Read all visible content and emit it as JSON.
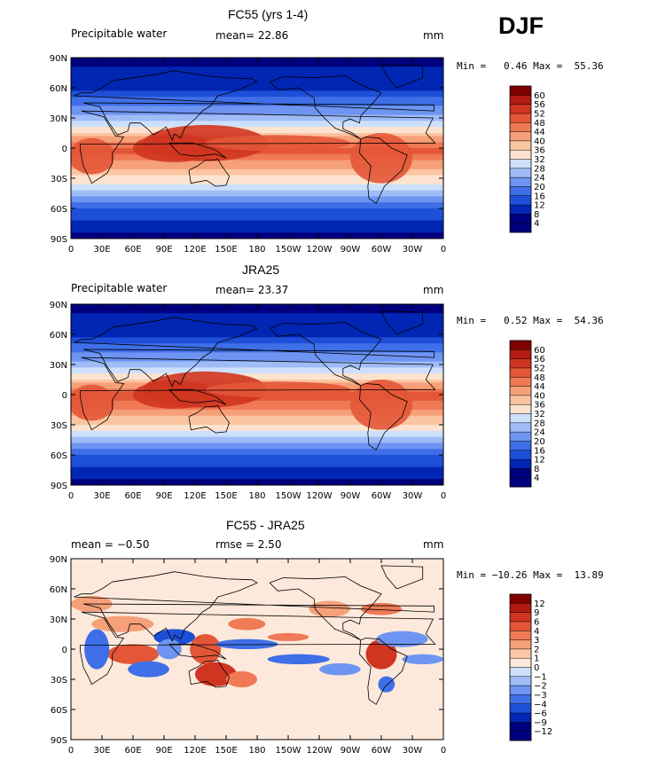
{
  "season": "DJF",
  "axes": {
    "lat_ticks": [
      "90N",
      "60N",
      "30N",
      "0",
      "30S",
      "60S",
      "90S"
    ],
    "lon_ticks": [
      "0",
      "30E",
      "60E",
      "90E",
      "120E",
      "150E",
      "180",
      "150W",
      "120W",
      "90W",
      "60W",
      "30W",
      "0"
    ]
  },
  "colors": {
    "pw_levels": [
      "#00007f",
      "#0026b3",
      "#1e4fd8",
      "#3f6fe8",
      "#6f95f2",
      "#9fbcf7",
      "#cde0fb",
      "#fde3cf",
      "#fbc5a2",
      "#f6a07a",
      "#ef7a55",
      "#e35637",
      "#cf3520",
      "#b31a12",
      "#800000"
    ],
    "diff_levels": [
      "#00007f",
      "#0026b3",
      "#1e4fd8",
      "#3f6fe8",
      "#6f95f2",
      "#9fbcf7",
      "#cde0fb",
      "#fde9db",
      "#fbc7a6",
      "#f6a07a",
      "#ef7a55",
      "#e35637",
      "#cf3520",
      "#b31a12",
      "#800000"
    ]
  },
  "panels": [
    {
      "title": "FC55 (yrs 1-4)",
      "left_label": "Precipitable water",
      "center_label": "mean=  22.86",
      "right_label": "mm",
      "min_max": "Min =   0.46 Max =  55.36",
      "colorbar_labels": [
        "60",
        "56",
        "52",
        "48",
        "44",
        "40",
        "36",
        "32",
        "28",
        "24",
        "20",
        "16",
        "12",
        "8",
        "4"
      ]
    },
    {
      "title": "JRA25",
      "left_label": "Precipitable water",
      "center_label": "mean=  23.37",
      "right_label": "mm",
      "min_max": "Min =   0.52 Max =  54.36",
      "colorbar_labels": [
        "60",
        "56",
        "52",
        "48",
        "44",
        "40",
        "36",
        "32",
        "28",
        "24",
        "20",
        "16",
        "12",
        "8",
        "4"
      ]
    },
    {
      "title": "FC55 - JRA25",
      "left_label": "mean =  −0.50",
      "center_label": "rmse =   2.50",
      "right_label": "mm",
      "min_max": "Min = −10.26 Max =  13.89",
      "colorbar_labels": [
        "12",
        "9",
        "6",
        "4",
        "3",
        "2",
        "1",
        "0",
        "−1",
        "−2",
        "−3",
        "−4",
        "−6",
        "−9",
        "−12"
      ]
    }
  ],
  "chart_data": [
    {
      "type": "heatmap",
      "title": "FC55 (yrs 1-4)",
      "variable": "Precipitable water",
      "units": "mm",
      "mean": 22.86,
      "min": 0.46,
      "max": 55.36,
      "xlim": [
        0,
        360
      ],
      "ylim": [
        -90,
        90
      ],
      "contour_levels": [
        4,
        8,
        12,
        16,
        20,
        24,
        28,
        32,
        36,
        40,
        44,
        48,
        52,
        56,
        60
      ],
      "zonal_profile_approx": {
        "lat": [
          90,
          60,
          30,
          0,
          -30,
          -60,
          -90
        ],
        "value": [
          3,
          8,
          22,
          46,
          30,
          12,
          2
        ]
      }
    },
    {
      "type": "heatmap",
      "title": "JRA25",
      "variable": "Precipitable water",
      "units": "mm",
      "mean": 23.37,
      "min": 0.52,
      "max": 54.36,
      "xlim": [
        0,
        360
      ],
      "ylim": [
        -90,
        90
      ],
      "contour_levels": [
        4,
        8,
        12,
        16,
        20,
        24,
        28,
        32,
        36,
        40,
        44,
        48,
        52,
        56,
        60
      ],
      "zonal_profile_approx": {
        "lat": [
          90,
          60,
          30,
          0,
          -30,
          -60,
          -90
        ],
        "value": [
          3,
          8,
          22,
          47,
          31,
          12,
          2
        ]
      }
    },
    {
      "type": "heatmap",
      "title": "FC55 - JRA25",
      "units": "mm",
      "mean": -0.5,
      "rmse": 2.5,
      "min": -10.26,
      "max": 13.89,
      "xlim": [
        0,
        360
      ],
      "ylim": [
        -90,
        90
      ],
      "contour_levels": [
        -12,
        -9,
        -6,
        -4,
        -3,
        -2,
        -1,
        0,
        1,
        2,
        3,
        4,
        6,
        9,
        12
      ]
    }
  ]
}
